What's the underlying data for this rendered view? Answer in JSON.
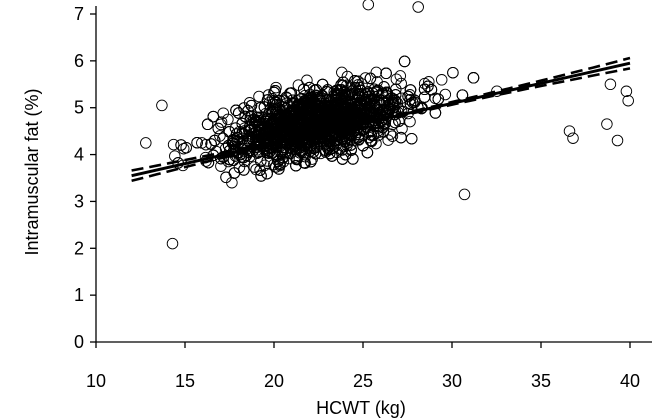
{
  "chart_data": {
    "type": "scatter",
    "title": "",
    "xlabel": "HCWT (kg)",
    "ylabel": "Intramuscular fat (%)",
    "xlim": [
      10,
      40
    ],
    "ylim": [
      0,
      7
    ],
    "xticks": [
      "10",
      "15",
      "20",
      "25",
      "30",
      "35",
      "40"
    ],
    "yticks": [
      "0",
      "1",
      "2",
      "3",
      "4",
      "5",
      "6",
      "7"
    ],
    "grid": false,
    "legend": "none",
    "marker": "open-circle",
    "point_cloud": {
      "n_points": 2600,
      "x_center": 22.5,
      "x_spread": 3.6,
      "y_spread": 0.62,
      "x_range": [
        12.8,
        40
      ]
    },
    "notable_points": [
      {
        "x": 25.3,
        "y": 7.2
      },
      {
        "x": 28.1,
        "y": 7.15
      },
      {
        "x": 39.8,
        "y": 5.35
      },
      {
        "x": 39.9,
        "y": 5.15
      },
      {
        "x": 39.3,
        "y": 4.3
      },
      {
        "x": 38.7,
        "y": 4.65
      },
      {
        "x": 38.9,
        "y": 5.5
      },
      {
        "x": 14.3,
        "y": 2.1
      },
      {
        "x": 12.8,
        "y": 4.25
      },
      {
        "x": 13.7,
        "y": 5.05
      },
      {
        "x": 30.7,
        "y": 3.15
      },
      {
        "x": 36.6,
        "y": 4.5
      },
      {
        "x": 36.8,
        "y": 4.35
      }
    ],
    "regression": {
      "name": "fit",
      "x_range": [
        12,
        40
      ],
      "y_at_start": 3.55,
      "y_at_end": 5.95,
      "ci_half_width_ends": 0.11,
      "ci_half_width_center": 0.02
    }
  }
}
